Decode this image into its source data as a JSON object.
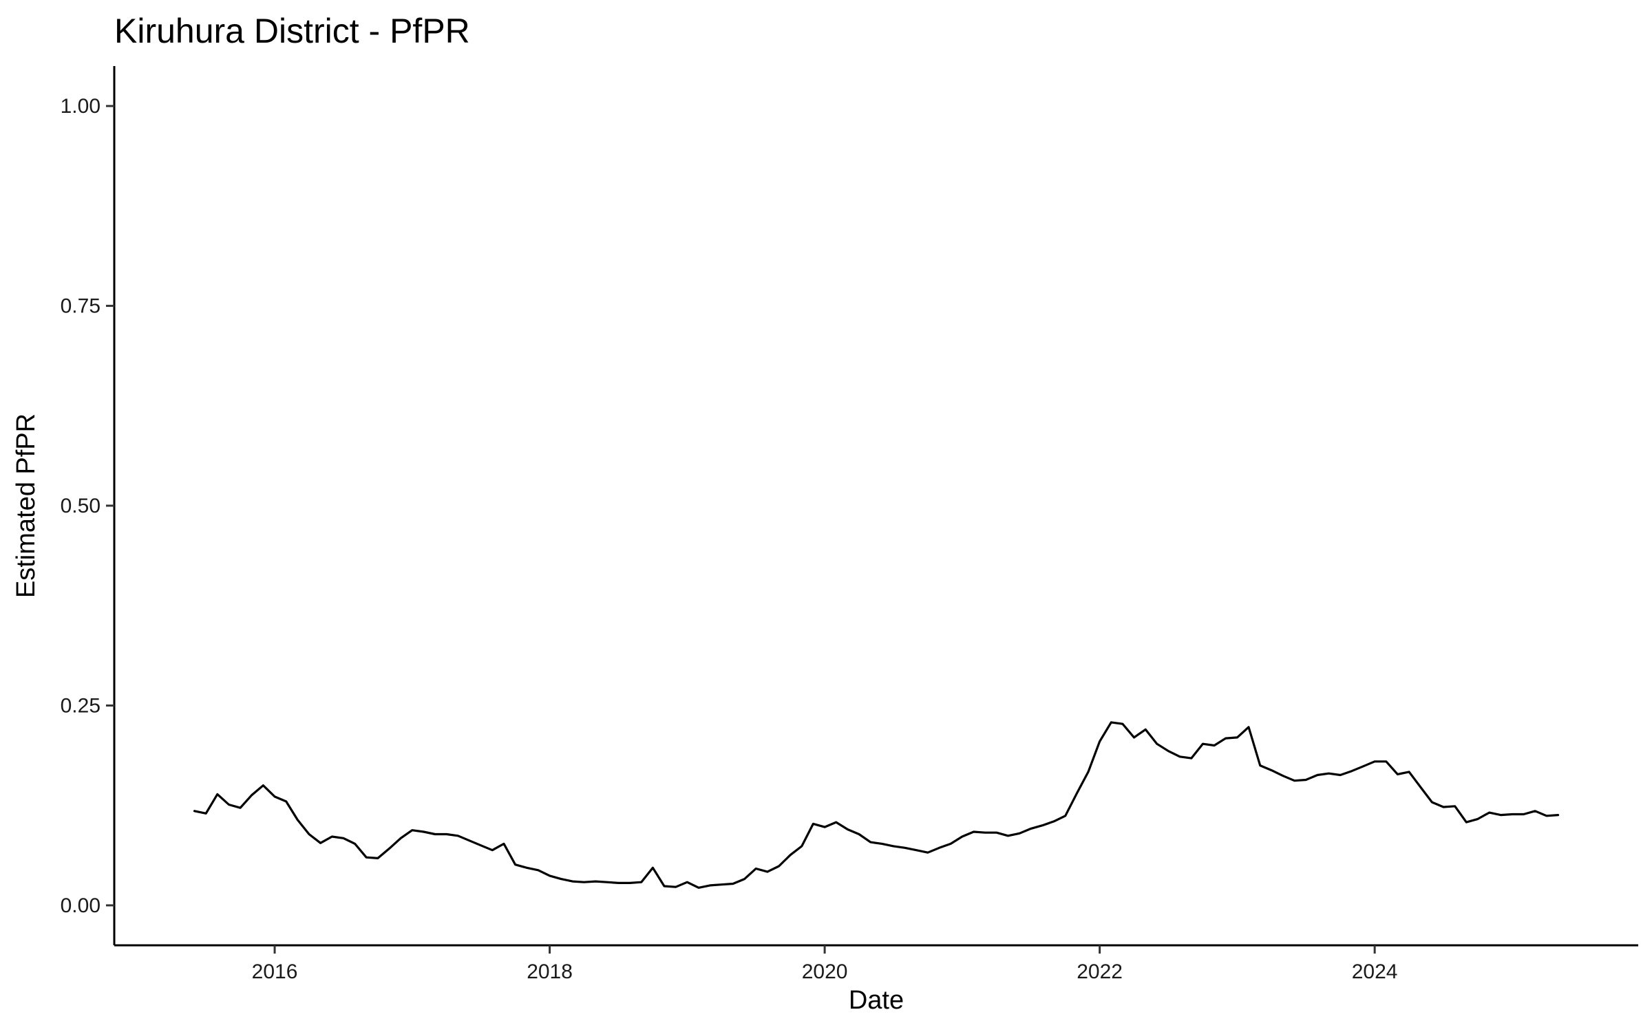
{
  "chart_data": {
    "type": "line",
    "title": "Kiruhura District - PfPR",
    "xlabel": "Date",
    "ylabel": "Estimated PfPR",
    "xlim": [
      "2014-11-01",
      "2025-12-01"
    ],
    "ylim": [
      -0.05,
      1.05
    ],
    "x_ticks": [
      "2016",
      "2018",
      "2020",
      "2022",
      "2024"
    ],
    "y_ticks": [
      "0.00",
      "0.25",
      "0.50",
      "0.75",
      "1.00"
    ],
    "grid": false,
    "legend": "none",
    "line_color": "#000000",
    "series": [
      {
        "x": [
          "2015-06",
          "2015-07",
          "2015-08",
          "2015-09",
          "2015-10",
          "2015-11",
          "2015-12",
          "2016-01",
          "2016-02",
          "2016-03",
          "2016-04",
          "2016-05",
          "2016-06",
          "2016-07",
          "2016-08",
          "2016-09",
          "2016-10",
          "2016-11",
          "2016-12",
          "2017-01",
          "2017-02",
          "2017-03",
          "2017-04",
          "2017-05",
          "2017-06",
          "2017-07",
          "2017-08",
          "2017-09",
          "2017-10",
          "2017-11",
          "2017-12",
          "2018-01",
          "2018-02",
          "2018-03",
          "2018-04",
          "2018-05",
          "2018-06",
          "2018-07",
          "2018-08",
          "2018-09",
          "2018-10",
          "2018-11",
          "2018-12",
          "2019-01",
          "2019-02",
          "2019-03",
          "2019-04",
          "2019-05",
          "2019-06",
          "2019-07",
          "2019-08",
          "2019-09",
          "2019-10",
          "2019-11",
          "2019-12",
          "2020-01",
          "2020-02",
          "2020-03",
          "2020-04",
          "2020-05",
          "2020-06",
          "2020-07",
          "2020-08",
          "2020-09",
          "2020-10",
          "2020-11",
          "2020-12",
          "2021-01",
          "2021-02",
          "2021-03",
          "2021-04",
          "2021-05",
          "2021-06",
          "2021-07",
          "2021-08",
          "2021-09",
          "2021-10",
          "2021-11",
          "2021-12",
          "2022-01",
          "2022-02",
          "2022-03",
          "2022-04",
          "2022-05",
          "2022-06",
          "2022-07",
          "2022-08",
          "2022-09",
          "2022-10",
          "2022-11",
          "2022-12",
          "2023-01",
          "2023-02",
          "2023-03",
          "2023-04",
          "2023-05",
          "2023-06",
          "2023-07",
          "2023-08",
          "2023-09",
          "2023-10",
          "2023-11",
          "2023-12",
          "2024-01",
          "2024-02",
          "2024-03",
          "2024-04",
          "2024-05",
          "2024-06",
          "2024-07",
          "2024-08",
          "2024-09",
          "2024-10",
          "2024-11",
          "2024-12",
          "2025-01",
          "2025-02",
          "2025-03",
          "2025-04",
          "2025-05"
        ],
        "values": [
          0.118,
          0.115,
          0.139,
          0.126,
          0.122,
          0.138,
          0.15,
          0.136,
          0.13,
          0.107,
          0.089,
          0.078,
          0.086,
          0.084,
          0.077,
          0.06,
          0.059,
          0.071,
          0.084,
          0.094,
          0.092,
          0.089,
          0.089,
          0.087,
          0.081,
          0.075,
          0.069,
          0.077,
          0.051,
          0.047,
          0.044,
          0.037,
          0.033,
          0.03,
          0.029,
          0.03,
          0.029,
          0.028,
          0.028,
          0.029,
          0.047,
          0.024,
          0.023,
          0.029,
          0.022,
          0.025,
          0.026,
          0.027,
          0.033,
          0.046,
          0.042,
          0.049,
          0.063,
          0.074,
          0.102,
          0.098,
          0.104,
          0.095,
          0.089,
          0.079,
          0.077,
          0.074,
          0.072,
          0.069,
          0.066,
          0.072,
          0.077,
          0.086,
          0.092,
          0.091,
          0.091,
          0.087,
          0.09,
          0.096,
          0.1,
          0.105,
          0.112,
          0.14,
          0.167,
          0.205,
          0.229,
          0.227,
          0.21,
          0.22,
          0.202,
          0.193,
          0.186,
          0.184,
          0.202,
          0.2,
          0.209,
          0.21,
          0.223,
          0.175,
          0.169,
          0.162,
          0.156,
          0.157,
          0.163,
          0.165,
          0.163,
          0.168,
          0.174,
          0.18,
          0.18,
          0.164,
          0.167,
          0.148,
          0.129,
          0.123,
          0.124,
          0.104,
          0.108,
          0.116,
          0.113,
          0.114,
          0.114,
          0.118,
          0.112,
          0.113
        ]
      }
    ]
  }
}
